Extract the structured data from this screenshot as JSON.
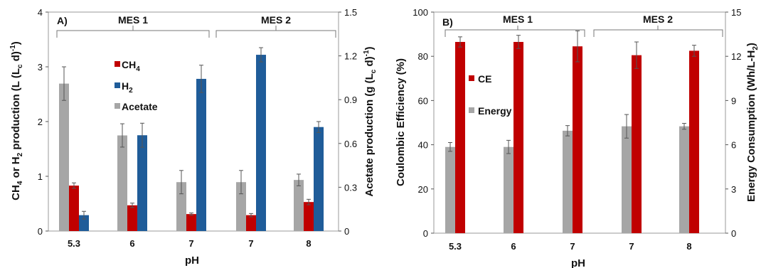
{
  "chart_data": [
    {
      "type": "bar",
      "panel_label": "A)",
      "categories": [
        "5.3",
        "6",
        "7",
        "7",
        "8"
      ],
      "groups": [
        {
          "label": "MES 1",
          "categories": [
            "5.3",
            "6",
            "7"
          ]
        },
        {
          "label": "MES 2",
          "categories": [
            "7",
            "8"
          ]
        }
      ],
      "series": [
        {
          "name": "Acetate",
          "key": "acetate",
          "axis": "right",
          "color": "#a6a6a6",
          "values": [
            1.01,
            0.655,
            0.335,
            0.335,
            0.35
          ],
          "errors": [
            0.115,
            0.08,
            0.08,
            0.08,
            0.04
          ]
        },
        {
          "name": "CH4",
          "key": "ch4",
          "axis": "left",
          "color": "#c00000",
          "values": [
            0.83,
            0.47,
            0.31,
            0.29,
            0.53
          ],
          "errors": [
            0.05,
            0.04,
            0.02,
            0.03,
            0.05
          ]
        },
        {
          "name": "H2",
          "key": "h2",
          "axis": "left",
          "color": "#1f5c99",
          "values": [
            0.29,
            1.75,
            2.78,
            3.22,
            1.9
          ],
          "errors": [
            0.07,
            0.22,
            0.25,
            0.13,
            0.1
          ]
        }
      ],
      "xlabel": "pH",
      "ylabel_left": "CH4 or H2 production (L (Lc d)-1)",
      "ylabel_right": "Acetate production (g (Lc d)-1)",
      "ylim_left": [
        0,
        4
      ],
      "ylim_right": [
        0,
        1.5
      ],
      "yticks_left": [
        "0",
        "1",
        "2",
        "3",
        "4"
      ],
      "yticks_right": [
        "0",
        "0.3",
        "0.6",
        "0.9",
        "1.2",
        "1.5"
      ],
      "legend": [
        "CH4",
        "H2",
        "Acetate"
      ],
      "legend_position": "upper-left"
    },
    {
      "type": "bar",
      "panel_label": "B)",
      "categories": [
        "5.3",
        "6",
        "7",
        "7",
        "8"
      ],
      "groups": [
        {
          "label": "MES 1",
          "categories": [
            "5.3",
            "6",
            "7"
          ]
        },
        {
          "label": "MES 2",
          "categories": [
            "7",
            "8"
          ]
        }
      ],
      "series": [
        {
          "name": "Energy",
          "key": "energy",
          "axis": "right",
          "color": "#a6a6a6",
          "values": [
            5.85,
            5.85,
            6.95,
            7.25,
            7.25
          ],
          "errors": [
            0.3,
            0.45,
            0.35,
            0.8,
            0.2
          ]
        },
        {
          "name": "CE",
          "key": "ce",
          "axis": "left",
          "color": "#c00000",
          "values": [
            86.5,
            86.5,
            84.5,
            80.5,
            82.5
          ],
          "errors": [
            2.3,
            3.0,
            7.0,
            6.0,
            2.5
          ]
        }
      ],
      "xlabel": "pH",
      "ylabel_left": "Coulombic Efficiency (%)",
      "ylabel_right": "Energy Consumption (Wh/L-H2)",
      "ylim_left": [
        0,
        100
      ],
      "ylim_right": [
        0,
        15
      ],
      "yticks_left": [
        "0",
        "20",
        "40",
        "60",
        "80",
        "100"
      ],
      "yticks_right": [
        "0",
        "3",
        "6",
        "9",
        "12",
        "15"
      ],
      "legend": [
        "CE",
        "Energy"
      ],
      "legend_position": "left-middle"
    }
  ]
}
